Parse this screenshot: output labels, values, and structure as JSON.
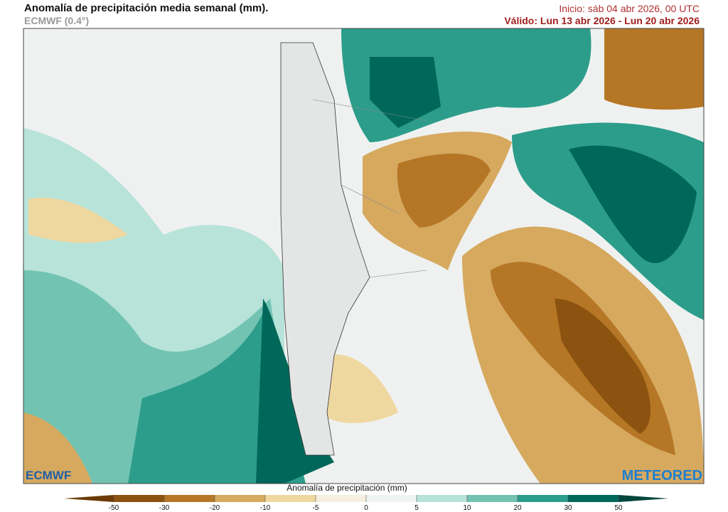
{
  "header": {
    "title": "Anomalía de precipitación media semanal (mm).",
    "model": "ECMWF (0.4°)",
    "init": "Inicio:  sáb 04 abr 2026, 00 UTC",
    "valid": "Válido: Lun 13 abr 2026 - Lun 20 abr 2026"
  },
  "logos": {
    "left": "ECMWF",
    "right": "METEORED"
  },
  "colorbar": {
    "label": "Anomalía de precipitación (mm)",
    "ticks": [
      -50,
      -30,
      -20,
      -10,
      -5,
      0,
      5,
      10,
      20,
      30,
      50
    ],
    "colors": [
      "#8c5210",
      "#b57726",
      "#d6a95f",
      "#efd7a0",
      "#f6efe0",
      "#eef4f3",
      "#b8e3d9",
      "#72c3b2",
      "#2d9d8b",
      "#00685a"
    ],
    "extend_colors": [
      "#6b3a05",
      "#00463d"
    ]
  }
}
